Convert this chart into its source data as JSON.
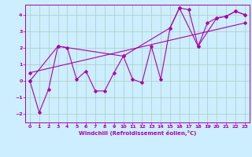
{
  "xlabel": "Windchill (Refroidissement éolien,°C)",
  "background_color": "#cceeff",
  "grid_color": "#aaccbb",
  "line_color": "#aa00aa",
  "spine_color": "#aa00aa",
  "xlim": [
    -0.5,
    23.5
  ],
  "ylim": [
    -2.5,
    4.6
  ],
  "xticks": [
    0,
    1,
    2,
    3,
    4,
    5,
    6,
    7,
    8,
    9,
    10,
    11,
    12,
    13,
    14,
    15,
    16,
    17,
    18,
    19,
    20,
    21,
    22,
    23
  ],
  "yticks": [
    -2,
    -1,
    0,
    1,
    2,
    3,
    4
  ],
  "hourly_x": [
    0,
    1,
    2,
    3,
    4,
    5,
    6,
    7,
    8,
    9,
    10,
    11,
    12,
    13,
    14,
    15,
    16,
    17,
    18,
    19,
    20,
    21,
    22,
    23
  ],
  "hourly_y": [
    0.0,
    -1.9,
    -0.5,
    2.1,
    2.0,
    0.1,
    0.6,
    -0.6,
    -0.6,
    0.5,
    1.5,
    0.1,
    -0.1,
    2.1,
    0.1,
    3.2,
    4.4,
    4.3,
    2.1,
    3.5,
    3.8,
    3.9,
    4.2,
    4.0
  ],
  "trend1_x": [
    0,
    3,
    10,
    15,
    16,
    18,
    20,
    21,
    22,
    23
  ],
  "trend1_y": [
    0.0,
    2.1,
    1.5,
    3.2,
    4.4,
    2.1,
    3.8,
    3.9,
    4.2,
    4.0
  ],
  "trend2_x": [
    0,
    23
  ],
  "trend2_y": [
    0.5,
    3.5
  ],
  "tick_fontsize": 4.5,
  "xlabel_fontsize": 5.0,
  "marker_size": 1.8,
  "line_width": 0.8
}
